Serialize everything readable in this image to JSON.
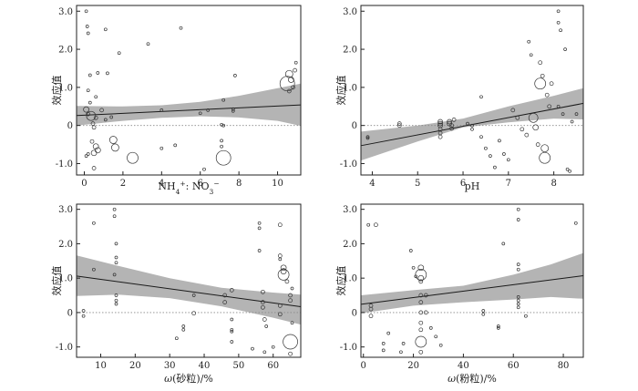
{
  "chart_data": [
    {
      "type": "scatter",
      "xlabel_parts": [
        [
          "NH",
          "norm"
        ],
        [
          "4",
          "sub"
        ],
        [
          "+",
          "sup"
        ],
        [
          ": NO",
          "norm"
        ],
        [
          "3",
          "sub"
        ],
        [
          "−",
          "sup"
        ]
      ],
      "ylabel": "效应值",
      "xlim": [
        -0.4,
        11.2
      ],
      "ylim": [
        -1.3,
        3.15
      ],
      "xticks": [
        0,
        2,
        4,
        6,
        8,
        10
      ],
      "yticks": [
        -1.0,
        0,
        1.0,
        2.0,
        3.0
      ],
      "ytick_labels": [
        "-1.0",
        "0",
        "1.0",
        "2.0",
        "3.0"
      ],
      "zero_line": 0,
      "fit_line": [
        [
          -0.4,
          0.26
        ],
        [
          11.2,
          0.54
        ]
      ],
      "ci_band": [
        [
          -0.4,
          0.51,
          0.0
        ],
        [
          2,
          0.5,
          0.12
        ],
        [
          4,
          0.53,
          0.2
        ],
        [
          6,
          0.62,
          0.24
        ],
        [
          8,
          0.78,
          0.21
        ],
        [
          10,
          0.98,
          0.12
        ],
        [
          11.2,
          1.1,
          -0.01
        ]
      ],
      "points": [
        [
          0.1,
          3.0,
          1.5
        ],
        [
          0.15,
          2.6,
          1.5
        ],
        [
          0.2,
          2.42,
          1.5
        ],
        [
          1.1,
          2.52,
          1.5
        ],
        [
          1.8,
          1.9,
          1.5
        ],
        [
          3.3,
          2.14,
          1.5
        ],
        [
          5.0,
          2.56,
          1.5
        ],
        [
          0.3,
          1.32,
          1.5
        ],
        [
          0.7,
          1.38,
          1.5
        ],
        [
          1.2,
          1.37,
          1.5
        ],
        [
          7.8,
          1.31,
          1.5
        ],
        [
          0.2,
          0.92,
          1.5
        ],
        [
          0.3,
          0.6,
          1.5
        ],
        [
          0.6,
          0.75,
          1.5
        ],
        [
          7.2,
          0.67,
          1.5
        ],
        [
          7.7,
          0.43,
          1.5
        ],
        [
          7.7,
          0.38,
          1.5
        ],
        [
          0.1,
          0.42,
          3
        ],
        [
          0.35,
          0.25,
          5
        ],
        [
          0.45,
          0.05,
          2
        ],
        [
          0.5,
          -0.05,
          2
        ],
        [
          0.2,
          0.3,
          2
        ],
        [
          0.6,
          0.2,
          2
        ],
        [
          0.9,
          0.4,
          2
        ],
        [
          1.1,
          0.15,
          1.5
        ],
        [
          1.4,
          0.22,
          1.5
        ],
        [
          0.4,
          -0.42,
          2
        ],
        [
          4.0,
          0.4,
          1.5
        ],
        [
          6.0,
          0.32,
          1.5
        ],
        [
          6.4,
          0.4,
          1.5
        ],
        [
          7.1,
          0.02,
          1.5
        ],
        [
          7.2,
          0.0,
          1.5
        ],
        [
          0.6,
          -0.55,
          3
        ],
        [
          0.5,
          -0.72,
          3
        ],
        [
          0.7,
          -0.65,
          3
        ],
        [
          0.1,
          -0.8,
          1.5
        ],
        [
          0.2,
          -0.75,
          1.5
        ],
        [
          0.5,
          -1.12,
          2
        ],
        [
          1.5,
          -0.38,
          4
        ],
        [
          1.6,
          -0.58,
          4
        ],
        [
          2.5,
          -0.85,
          6
        ],
        [
          4.0,
          -0.6,
          1.5
        ],
        [
          4.7,
          -0.52,
          1.5
        ],
        [
          6.2,
          -1.15,
          1.5
        ],
        [
          7.1,
          -0.55,
          1.5
        ],
        [
          7.1,
          -0.4,
          1.5
        ],
        [
          7.2,
          -0.85,
          8
        ],
        [
          10.5,
          1.1,
          8
        ],
        [
          10.6,
          1.35,
          4
        ],
        [
          10.7,
          1.2,
          3
        ],
        [
          10.8,
          1.0,
          2
        ],
        [
          10.9,
          1.45,
          2
        ],
        [
          10.6,
          0.9,
          2
        ],
        [
          10.95,
          1.65,
          1.5
        ]
      ]
    },
    {
      "type": "scatter",
      "xlabel_parts": [
        [
          "pH",
          "norm"
        ]
      ],
      "ylabel": "效应值",
      "xlim": [
        3.75,
        8.65
      ],
      "ylim": [
        -1.3,
        3.15
      ],
      "xticks": [
        4,
        5,
        6,
        7,
        8
      ],
      "yticks": [
        -1.0,
        0,
        1.0,
        2.0,
        3.0
      ],
      "ytick_labels": [
        "-1.0",
        "0",
        "1.0",
        "2.0",
        "3.0"
      ],
      "zero_line": 0,
      "fit_line": [
        [
          3.75,
          -0.53
        ],
        [
          8.65,
          0.58
        ]
      ],
      "ci_band": [
        [
          3.75,
          -0.16,
          -0.92
        ],
        [
          5,
          0.0,
          -0.42
        ],
        [
          6,
          0.18,
          -0.05
        ],
        [
          7,
          0.5,
          0.08
        ],
        [
          8,
          0.78,
          0.18
        ],
        [
          8.65,
          0.98,
          0.16
        ]
      ],
      "points": [
        [
          3.9,
          -0.3,
          1.5
        ],
        [
          3.9,
          -0.33,
          1.5
        ],
        [
          4.6,
          0.05,
          2
        ],
        [
          4.6,
          0.0,
          2
        ],
        [
          5.5,
          0.05,
          2.5
        ],
        [
          5.5,
          0.1,
          2.5
        ],
        [
          5.5,
          0.0,
          2.5
        ],
        [
          5.5,
          -0.1,
          2
        ],
        [
          5.5,
          -0.2,
          2
        ],
        [
          5.5,
          -0.3,
          2
        ],
        [
          5.7,
          0.05,
          2.5
        ],
        [
          5.7,
          0.1,
          2.5
        ],
        [
          5.75,
          0.0,
          2
        ],
        [
          5.75,
          -0.08,
          2
        ],
        [
          5.8,
          0.15,
          2
        ],
        [
          6.1,
          0.05,
          1.5
        ],
        [
          6.2,
          -0.1,
          1.5
        ],
        [
          6.2,
          0.0,
          1.5
        ],
        [
          6.4,
          0.75,
          1.5
        ],
        [
          6.4,
          -0.3,
          1.5
        ],
        [
          6.5,
          -0.6,
          1.5
        ],
        [
          6.6,
          -0.8,
          1.5
        ],
        [
          6.7,
          -1.1,
          1.5
        ],
        [
          6.8,
          -0.4,
          1.5
        ],
        [
          6.9,
          -0.75,
          1.5
        ],
        [
          7.0,
          -0.9,
          1.5
        ],
        [
          7.1,
          0.4,
          2
        ],
        [
          7.2,
          0.2,
          2
        ],
        [
          7.3,
          -0.1,
          2
        ],
        [
          7.4,
          -0.25,
          2
        ],
        [
          7.45,
          2.2,
          1.5
        ],
        [
          7.5,
          1.85,
          1.5
        ],
        [
          7.55,
          0.2,
          5
        ],
        [
          7.6,
          -0.05,
          3
        ],
        [
          7.65,
          -0.5,
          2
        ],
        [
          7.7,
          1.1,
          6
        ],
        [
          7.7,
          1.65,
          2
        ],
        [
          7.75,
          1.3,
          2
        ],
        [
          7.8,
          -0.6,
          4
        ],
        [
          7.8,
          -0.85,
          6
        ],
        [
          7.85,
          0.8,
          2
        ],
        [
          7.9,
          0.5,
          2
        ],
        [
          7.95,
          1.1,
          2
        ],
        [
          8.1,
          3.0,
          1.5
        ],
        [
          8.1,
          2.7,
          1.5
        ],
        [
          8.15,
          2.5,
          1.5
        ],
        [
          8.1,
          0.5,
          1.5
        ],
        [
          8.2,
          0.3,
          1.5
        ],
        [
          8.25,
          2.0,
          1.5
        ],
        [
          8.3,
          -1.15,
          1.5
        ],
        [
          8.35,
          -1.2,
          1.5
        ],
        [
          8.4,
          0.1,
          1.5
        ],
        [
          8.5,
          0.3,
          1.5
        ]
      ]
    },
    {
      "type": "scatter",
      "xlabel_parts": [
        [
          "ω",
          "ital"
        ],
        [
          "(砂粒)/%",
          "norm"
        ]
      ],
      "ylabel": "效应值",
      "xlim": [
        3,
        68
      ],
      "ylim": [
        -1.3,
        3.15
      ],
      "xticks": [
        10,
        20,
        30,
        40,
        50,
        60
      ],
      "yticks": [
        -1.0,
        0,
        1.0,
        2.0,
        3.0
      ],
      "ytick_labels": [
        "-1.0",
        "0",
        "1.0",
        "2.0",
        "3.0"
      ],
      "zero_line": 0,
      "fit_line": [
        [
          3,
          1.06
        ],
        [
          68,
          0.17
        ]
      ],
      "ci_band": [
        [
          3,
          1.66,
          0.48
        ],
        [
          15,
          1.36,
          0.52
        ],
        [
          30,
          1.0,
          0.42
        ],
        [
          45,
          0.72,
          0.18
        ],
        [
          60,
          0.58,
          -0.15
        ],
        [
          68,
          0.52,
          -0.35
        ]
      ],
      "points": [
        [
          5,
          0.05,
          1.5
        ],
        [
          5,
          -0.1,
          1.5
        ],
        [
          8,
          2.6,
          1.5
        ],
        [
          8,
          1.25,
          1.5
        ],
        [
          14,
          3.0,
          1.5
        ],
        [
          14,
          2.8,
          1.5
        ],
        [
          14.5,
          2.0,
          1.5
        ],
        [
          14.5,
          1.6,
          1.5
        ],
        [
          14.5,
          1.45,
          1.5
        ],
        [
          14,
          1.1,
          1.5
        ],
        [
          14.5,
          0.5,
          1.5
        ],
        [
          14.5,
          0.35,
          1.5
        ],
        [
          14.5,
          0.25,
          1.5
        ],
        [
          32,
          -0.75,
          1.5
        ],
        [
          34,
          -0.4,
          1.5
        ],
        [
          34,
          -0.5,
          1.5
        ],
        [
          37,
          0.5,
          1.5
        ],
        [
          37,
          -0.02,
          2
        ],
        [
          46,
          0.5,
          2
        ],
        [
          46,
          0.3,
          2
        ],
        [
          48,
          0.65,
          2
        ],
        [
          48,
          -0.2,
          1.5
        ],
        [
          48,
          -0.5,
          1.5
        ],
        [
          48,
          -0.55,
          1.5
        ],
        [
          48,
          -0.85,
          1.5
        ],
        [
          54,
          -1.05,
          1.5
        ],
        [
          56,
          2.6,
          1.5
        ],
        [
          56,
          2.45,
          1.5
        ],
        [
          56,
          1.8,
          1.5
        ],
        [
          57,
          0.6,
          2
        ],
        [
          57,
          0.3,
          2
        ],
        [
          57,
          0.15,
          2
        ],
        [
          57.5,
          -0.2,
          2
        ],
        [
          57.5,
          -1.15,
          1.5
        ],
        [
          58,
          -0.4,
          1.5
        ],
        [
          60,
          -1.0,
          1.5
        ],
        [
          62,
          2.55,
          2
        ],
        [
          62,
          1.65,
          2
        ],
        [
          62,
          1.55,
          1.5
        ],
        [
          62,
          0.2,
          2
        ],
        [
          62,
          -0.05,
          2
        ],
        [
          63,
          1.3,
          3
        ],
        [
          63,
          1.2,
          3
        ],
        [
          63,
          1.1,
          6
        ],
        [
          64,
          0.9,
          2
        ],
        [
          65,
          0.5,
          2
        ],
        [
          65,
          0.35,
          2
        ],
        [
          65,
          -0.85,
          8
        ],
        [
          65.5,
          -0.3,
          1.5
        ],
        [
          65,
          -1.2,
          2
        ],
        [
          65.5,
          0.7,
          1.5
        ]
      ]
    },
    {
      "type": "scatter",
      "xlabel_parts": [
        [
          "ω",
          "ital"
        ],
        [
          "(粉粒)/%",
          "norm"
        ]
      ],
      "ylabel": "效应值",
      "xlim": [
        -1,
        88
      ],
      "ylim": [
        -1.3,
        3.15
      ],
      "xticks": [
        0,
        20,
        40,
        60,
        80
      ],
      "yticks": [
        -1.0,
        0,
        1.0,
        2.0,
        3.0
      ],
      "ytick_labels": [
        "-1.0",
        "0",
        "1.0",
        "2.0",
        "3.0"
      ],
      "zero_line": 0,
      "fit_line": [
        [
          -1,
          0.24
        ],
        [
          88,
          1.07
        ]
      ],
      "ci_band": [
        [
          -1,
          0.5,
          -0.02
        ],
        [
          20,
          0.65,
          0.2
        ],
        [
          40,
          0.78,
          0.3
        ],
        [
          60,
          1.1,
          0.38
        ],
        [
          75,
          1.4,
          0.45
        ],
        [
          88,
          1.73,
          0.4
        ]
      ],
      "points": [
        [
          2,
          2.55,
          1.5
        ],
        [
          3,
          0.2,
          2
        ],
        [
          3,
          0.1,
          2
        ],
        [
          3,
          -0.1,
          2
        ],
        [
          5,
          2.55,
          2
        ],
        [
          8,
          -0.9,
          1.5
        ],
        [
          8,
          -1.1,
          1.5
        ],
        [
          10,
          -0.6,
          1.5
        ],
        [
          15,
          -1.15,
          1.5
        ],
        [
          16,
          -0.9,
          1.5
        ],
        [
          19,
          1.8,
          1.5
        ],
        [
          20,
          1.3,
          1.5
        ],
        [
          21,
          1.05,
          1.5
        ],
        [
          23,
          1.1,
          6
        ],
        [
          23,
          1.3,
          3
        ],
        [
          23,
          1.0,
          3
        ],
        [
          23,
          0.9,
          2
        ],
        [
          23,
          0.5,
          2
        ],
        [
          23,
          0.3,
          2
        ],
        [
          23,
          0.0,
          2
        ],
        [
          23,
          -0.3,
          2
        ],
        [
          23,
          -0.5,
          2
        ],
        [
          23,
          -0.85,
          6
        ],
        [
          23,
          -1.15,
          2
        ],
        [
          25,
          0.5,
          2
        ],
        [
          25,
          0.0,
          2
        ],
        [
          27,
          -0.45,
          1.5
        ],
        [
          29,
          -0.7,
          1.5
        ],
        [
          31,
          -0.95,
          1.5
        ],
        [
          48,
          0.05,
          1.5
        ],
        [
          48,
          -0.05,
          1.5
        ],
        [
          54,
          -0.4,
          1.5
        ],
        [
          54,
          -0.45,
          1.5
        ],
        [
          56,
          2.0,
          1.5
        ],
        [
          62,
          3.0,
          1.5
        ],
        [
          62,
          2.7,
          1.5
        ],
        [
          62,
          1.4,
          1.5
        ],
        [
          62,
          1.25,
          1.5
        ],
        [
          62,
          0.45,
          1.5
        ],
        [
          62,
          0.35,
          1.5
        ],
        [
          62,
          0.25,
          1.5
        ],
        [
          62,
          0.15,
          1.5
        ],
        [
          65,
          -0.1,
          1.5
        ],
        [
          85,
          2.6,
          1.5
        ]
      ]
    }
  ]
}
